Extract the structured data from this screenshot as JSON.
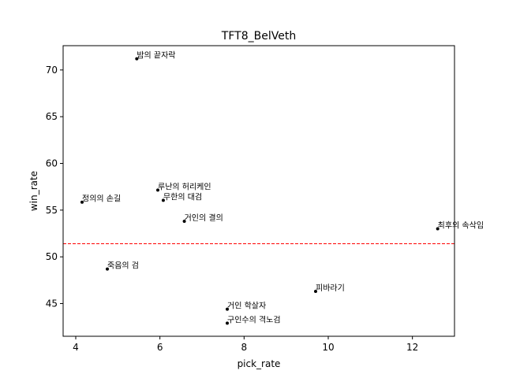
{
  "chart_data": {
    "type": "scatter",
    "title": "TFT8_BelVeth",
    "xlabel": "pick_rate",
    "ylabel": "win_rate",
    "xlim": [
      3.7,
      13.0
    ],
    "ylim": [
      41.5,
      72.6
    ],
    "xticks": [
      4,
      6,
      8,
      10,
      12
    ],
    "yticks": [
      45,
      50,
      55,
      60,
      65,
      70
    ],
    "reference_line": {
      "y": 51.4,
      "color": "#ff0000",
      "style": "dashed"
    },
    "grid": false,
    "point_color": "#000000",
    "points": [
      {
        "label": "밤의 끝자락",
        "x": 5.45,
        "y": 71.2
      },
      {
        "label": "정의의 손길",
        "x": 4.15,
        "y": 55.85
      },
      {
        "label": "루난의 허리케인",
        "x": 5.95,
        "y": 57.15
      },
      {
        "label": "무한의 대검",
        "x": 6.08,
        "y": 56.05
      },
      {
        "label": "거인의 결의",
        "x": 6.58,
        "y": 53.8
      },
      {
        "label": "죽음의 검",
        "x": 4.75,
        "y": 48.7
      },
      {
        "label": "최후의 속삭임",
        "x": 12.6,
        "y": 53.0
      },
      {
        "label": "피바라기",
        "x": 9.7,
        "y": 46.3
      },
      {
        "label": "거인 학살자",
        "x": 7.6,
        "y": 44.4
      },
      {
        "label": "구인수의 격노검",
        "x": 7.6,
        "y": 42.9
      }
    ]
  }
}
